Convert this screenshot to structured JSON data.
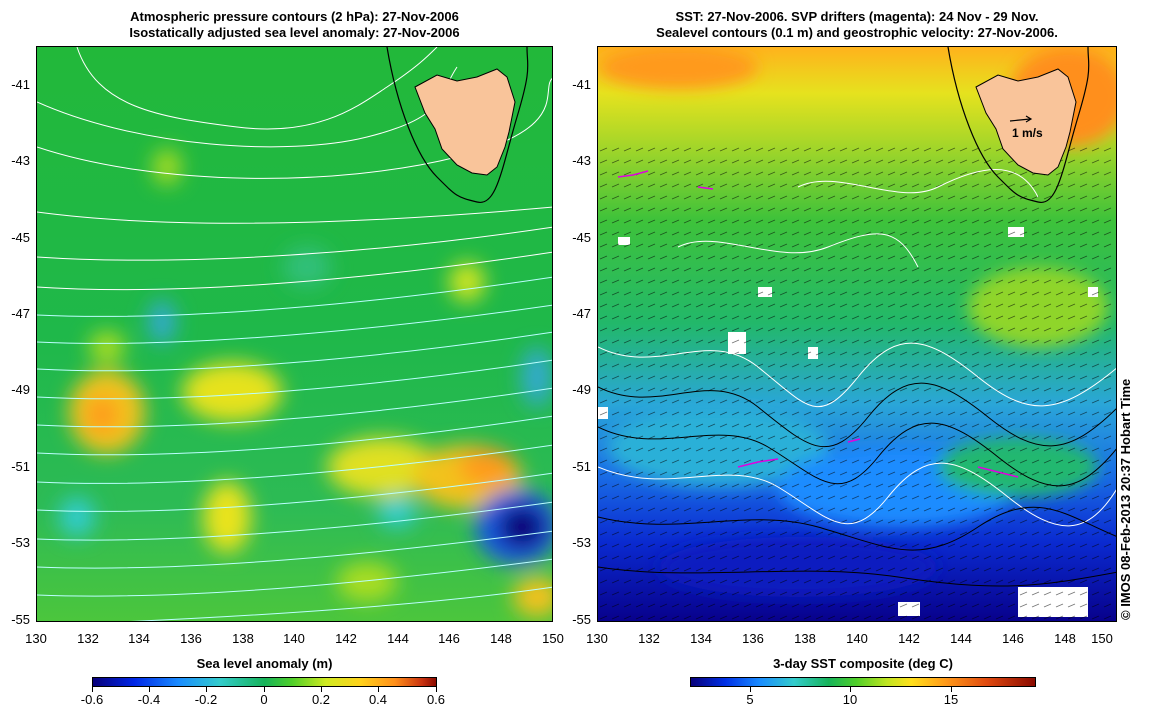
{
  "left": {
    "title_line1": "Atmospheric pressure contours (2 hPa): 27-Nov-2006",
    "title_line2": "Isostatically adjusted sea level anomaly: 27-Nov-2006",
    "colorbar_title": "Sea level anomaly (m)",
    "colorbar_ticks": [
      "-0.6",
      "-0.4",
      "-0.2",
      "0",
      "0.2",
      "0.4",
      "0.6"
    ]
  },
  "right": {
    "title_line1": "SST: 27-Nov-2006. SVP drifters (magenta): 24 Nov - 29 Nov.",
    "title_line2": "Sealevel contours (0.1 m) and geostrophic velocity: 27-Nov-2006.",
    "colorbar_title": "3-day SST composite (deg C)",
    "colorbar_ticks": [
      "5",
      "10",
      "15"
    ],
    "scale_arrow_label": "1 m/s"
  },
  "axes": {
    "y_ticks": [
      "-41",
      "-43",
      "-45",
      "-47",
      "-49",
      "-51",
      "-53",
      "-55"
    ],
    "x_ticks": [
      "130",
      "132",
      "134",
      "136",
      "138",
      "140",
      "142",
      "144",
      "146",
      "148",
      "150"
    ]
  },
  "copyright": "© IMOS 08-Feb-2013 20:37 Hobart Time",
  "colors": {
    "land": "#f9c49a",
    "ocean_mid": "#1fb83c",
    "drifter": "#e000e0"
  }
}
